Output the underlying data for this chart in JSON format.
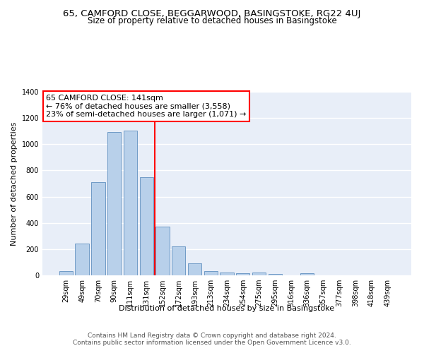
{
  "title": "65, CAMFORD CLOSE, BEGGARWOOD, BASINGSTOKE, RG22 4UJ",
  "subtitle": "Size of property relative to detached houses in Basingstoke",
  "xlabel": "Distribution of detached houses by size in Basingstoke",
  "ylabel": "Number of detached properties",
  "categories": [
    "29sqm",
    "49sqm",
    "70sqm",
    "90sqm",
    "111sqm",
    "131sqm",
    "152sqm",
    "172sqm",
    "193sqm",
    "213sqm",
    "234sqm",
    "254sqm",
    "275sqm",
    "295sqm",
    "316sqm",
    "336sqm",
    "357sqm",
    "377sqm",
    "398sqm",
    "418sqm",
    "439sqm"
  ],
  "values": [
    35,
    240,
    710,
    1095,
    1105,
    750,
    370,
    220,
    90,
    35,
    20,
    15,
    20,
    10,
    0,
    15,
    0,
    0,
    0,
    0,
    0
  ],
  "bar_color": "#b8d0ea",
  "bar_edge_color": "#6090c0",
  "vline_x": 5.5,
  "vline_color": "red",
  "annotation_text": "65 CAMFORD CLOSE: 141sqm\n← 76% of detached houses are smaller (3,558)\n23% of semi-detached houses are larger (1,071) →",
  "annotation_box_color": "white",
  "annotation_box_edge_color": "red",
  "ylim": [
    0,
    1400
  ],
  "yticks": [
    0,
    200,
    400,
    600,
    800,
    1000,
    1200,
    1400
  ],
  "bg_color": "#e8eef8",
  "grid_color": "white",
  "footer1": "Contains HM Land Registry data © Crown copyright and database right 2024.",
  "footer2": "Contains public sector information licensed under the Open Government Licence v3.0.",
  "title_fontsize": 9.5,
  "subtitle_fontsize": 8.5,
  "axis_label_fontsize": 8,
  "tick_fontsize": 7,
  "annotation_fontsize": 8,
  "footer_fontsize": 6.5
}
